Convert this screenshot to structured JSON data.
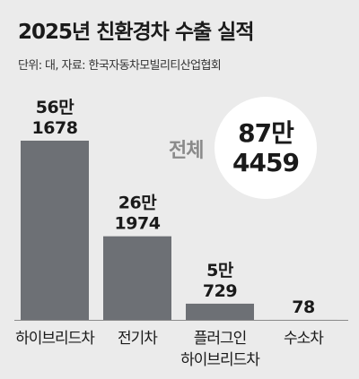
{
  "title": "2025년 친환경차 수출 실적",
  "subtitle": "단위: 대, 자료: 한국자동차모빌리티산업협회",
  "total": {
    "label": "전체",
    "value": 874459,
    "line1": "87만",
    "line2": "4459"
  },
  "chart_data": {
    "type": "bar",
    "categories": [
      [
        "하이브리드차"
      ],
      [
        "전기차"
      ],
      [
        "플러그인",
        "하이브리드차"
      ],
      [
        "수소차"
      ]
    ],
    "values": [
      561678,
      261974,
      50729,
      78
    ],
    "value_labels": [
      [
        "56만",
        "1678"
      ],
      [
        "26만",
        "1974"
      ],
      [
        "5만",
        "729"
      ],
      [
        "78"
      ]
    ],
    "ylim": [
      0,
      561678
    ],
    "colors": {
      "bar": "#6d7075",
      "baseline": "#8a8a8a"
    }
  }
}
